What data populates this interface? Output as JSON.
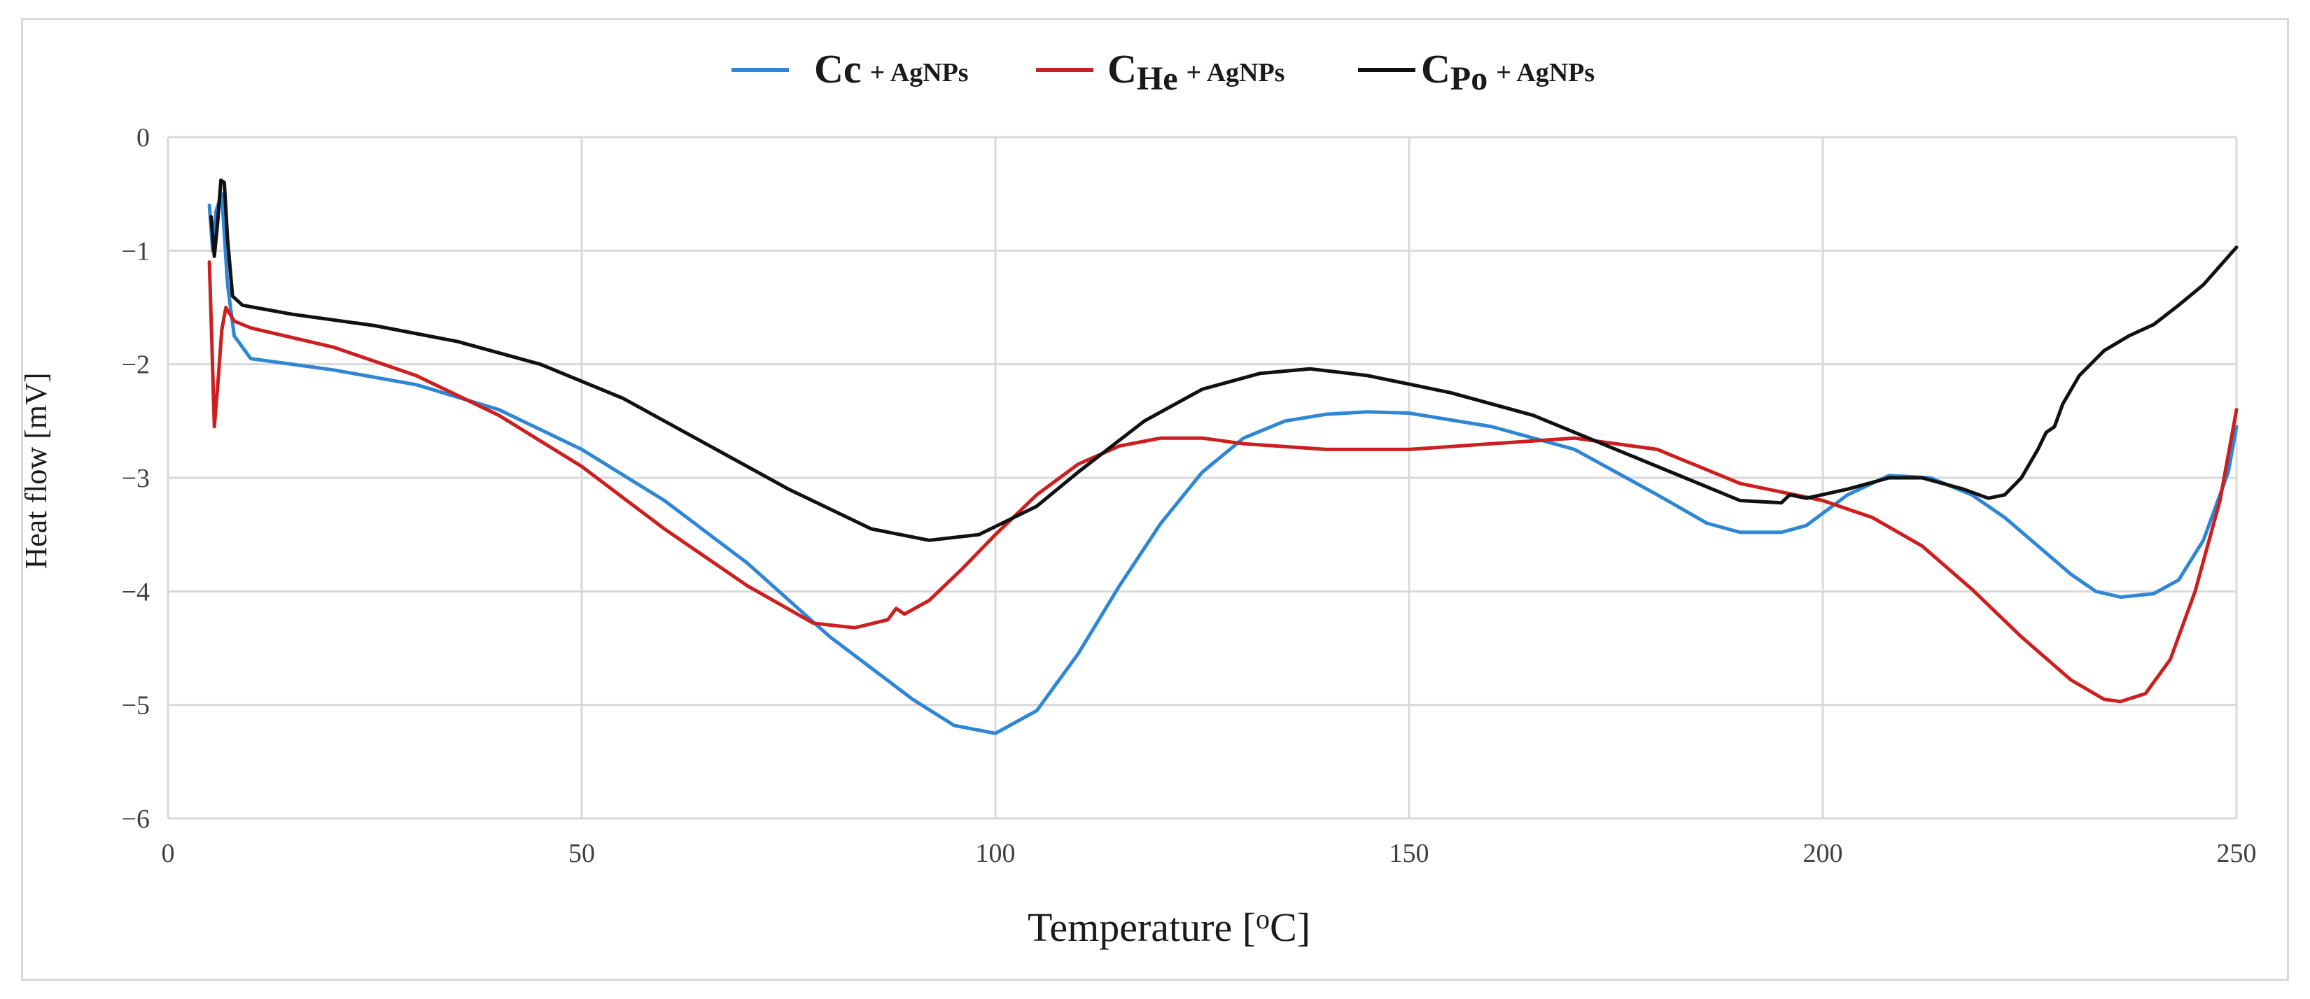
{
  "chart_data": {
    "type": "line",
    "title": "",
    "xlabel": "Temperature [",
    "xlabel_sup": "o",
    "xlabel_unit": "C]",
    "ylabel": "Heat flow [mV]",
    "xlim": [
      0,
      250
    ],
    "ylim": [
      -6,
      0
    ],
    "xticks": [
      "0",
      "50",
      "100",
      "150",
      "200",
      "250"
    ],
    "yticks": [
      "0",
      "−1",
      "−2",
      "−3",
      "−4",
      "−5",
      "−6"
    ],
    "grid": true,
    "legend_position": "top",
    "series": [
      {
        "name": "Cc + AgNPs",
        "legend_main": "Cc",
        "legend_sub": "",
        "legend_suffix": "+ AgNPs",
        "color": "#2e86d4",
        "points": [
          [
            5.0,
            -0.6
          ],
          [
            5.4,
            -1.0
          ],
          [
            5.8,
            -0.65
          ],
          [
            6.5,
            -0.5
          ],
          [
            7.2,
            -1.3
          ],
          [
            8,
            -1.75
          ],
          [
            10,
            -1.95
          ],
          [
            15,
            -2.0
          ],
          [
            20,
            -2.05
          ],
          [
            30,
            -2.18
          ],
          [
            40,
            -2.4
          ],
          [
            50,
            -2.75
          ],
          [
            60,
            -3.2
          ],
          [
            70,
            -3.75
          ],
          [
            80,
            -4.4
          ],
          [
            90,
            -4.95
          ],
          [
            95,
            -5.18
          ],
          [
            100,
            -5.25
          ],
          [
            105,
            -5.05
          ],
          [
            110,
            -4.55
          ],
          [
            115,
            -3.95
          ],
          [
            120,
            -3.4
          ],
          [
            125,
            -2.95
          ],
          [
            130,
            -2.65
          ],
          [
            135,
            -2.5
          ],
          [
            140,
            -2.44
          ],
          [
            145,
            -2.42
          ],
          [
            150,
            -2.43
          ],
          [
            160,
            -2.55
          ],
          [
            170,
            -2.75
          ],
          [
            180,
            -3.15
          ],
          [
            186,
            -3.4
          ],
          [
            190,
            -3.48
          ],
          [
            195,
            -3.48
          ],
          [
            198,
            -3.42
          ],
          [
            203,
            -3.15
          ],
          [
            208,
            -2.98
          ],
          [
            213,
            -3.0
          ],
          [
            218,
            -3.15
          ],
          [
            222,
            -3.35
          ],
          [
            226,
            -3.6
          ],
          [
            230,
            -3.85
          ],
          [
            233,
            -4.0
          ],
          [
            236,
            -4.05
          ],
          [
            240,
            -4.02
          ],
          [
            243,
            -3.9
          ],
          [
            246,
            -3.55
          ],
          [
            249,
            -2.95
          ],
          [
            250,
            -2.55
          ]
        ]
      },
      {
        "name": "CHe + AgNPs",
        "legend_main": "C",
        "legend_sub": "He",
        "legend_suffix": "+ AgNPs",
        "color": "#cc1f1f",
        "points": [
          [
            5.0,
            -1.1
          ],
          [
            5.3,
            -1.8
          ],
          [
            5.6,
            -2.55
          ],
          [
            6.0,
            -2.2
          ],
          [
            6.5,
            -1.7
          ],
          [
            7,
            -1.5
          ],
          [
            8,
            -1.62
          ],
          [
            10,
            -1.68
          ],
          [
            20,
            -1.85
          ],
          [
            30,
            -2.1
          ],
          [
            40,
            -2.45
          ],
          [
            50,
            -2.9
          ],
          [
            60,
            -3.45
          ],
          [
            70,
            -3.95
          ],
          [
            78,
            -4.28
          ],
          [
            83,
            -4.32
          ],
          [
            87,
            -4.25
          ],
          [
            88,
            -4.15
          ],
          [
            89,
            -4.2
          ],
          [
            92,
            -4.08
          ],
          [
            96,
            -3.8
          ],
          [
            100,
            -3.5
          ],
          [
            105,
            -3.15
          ],
          [
            110,
            -2.88
          ],
          [
            115,
            -2.72
          ],
          [
            120,
            -2.65
          ],
          [
            125,
            -2.65
          ],
          [
            130,
            -2.7
          ],
          [
            140,
            -2.75
          ],
          [
            150,
            -2.75
          ],
          [
            160,
            -2.7
          ],
          [
            170,
            -2.65
          ],
          [
            180,
            -2.75
          ],
          [
            190,
            -3.05
          ],
          [
            200,
            -3.2
          ],
          [
            206,
            -3.35
          ],
          [
            212,
            -3.6
          ],
          [
            218,
            -3.98
          ],
          [
            224,
            -4.4
          ],
          [
            230,
            -4.78
          ],
          [
            234,
            -4.95
          ],
          [
            236,
            -4.97
          ],
          [
            239,
            -4.9
          ],
          [
            242,
            -4.6
          ],
          [
            245,
            -4.0
          ],
          [
            248,
            -3.2
          ],
          [
            250,
            -2.4
          ]
        ]
      },
      {
        "name": "CPo + AgNPs",
        "legend_main": "C",
        "legend_sub": "Po",
        "legend_suffix": "+ AgNPs",
        "color": "#111111",
        "points": [
          [
            5.2,
            -0.7
          ],
          [
            5.6,
            -1.05
          ],
          [
            6.0,
            -0.75
          ],
          [
            6.4,
            -0.38
          ],
          [
            6.8,
            -0.4
          ],
          [
            7.2,
            -0.9
          ],
          [
            7.8,
            -1.4
          ],
          [
            9,
            -1.48
          ],
          [
            15,
            -1.56
          ],
          [
            25,
            -1.66
          ],
          [
            35,
            -1.8
          ],
          [
            45,
            -2.0
          ],
          [
            55,
            -2.3
          ],
          [
            65,
            -2.7
          ],
          [
            75,
            -3.1
          ],
          [
            85,
            -3.45
          ],
          [
            92,
            -3.55
          ],
          [
            98,
            -3.5
          ],
          [
            105,
            -3.25
          ],
          [
            110,
            -2.95
          ],
          [
            118,
            -2.5
          ],
          [
            125,
            -2.22
          ],
          [
            132,
            -2.08
          ],
          [
            138,
            -2.04
          ],
          [
            145,
            -2.1
          ],
          [
            155,
            -2.25
          ],
          [
            165,
            -2.45
          ],
          [
            175,
            -2.75
          ],
          [
            185,
            -3.05
          ],
          [
            190,
            -3.2
          ],
          [
            195,
            -3.22
          ],
          [
            196,
            -3.15
          ],
          [
            198,
            -3.18
          ],
          [
            203,
            -3.1
          ],
          [
            208,
            -3.0
          ],
          [
            212,
            -3.0
          ],
          [
            217,
            -3.1
          ],
          [
            220,
            -3.18
          ],
          [
            222,
            -3.15
          ],
          [
            224,
            -3.0
          ],
          [
            226,
            -2.75
          ],
          [
            227,
            -2.6
          ],
          [
            228,
            -2.55
          ],
          [
            229,
            -2.35
          ],
          [
            231,
            -2.1
          ],
          [
            234,
            -1.88
          ],
          [
            237,
            -1.75
          ],
          [
            240,
            -1.65
          ],
          [
            243,
            -1.48
          ],
          [
            246,
            -1.3
          ],
          [
            250,
            -0.97
          ]
        ]
      }
    ]
  }
}
